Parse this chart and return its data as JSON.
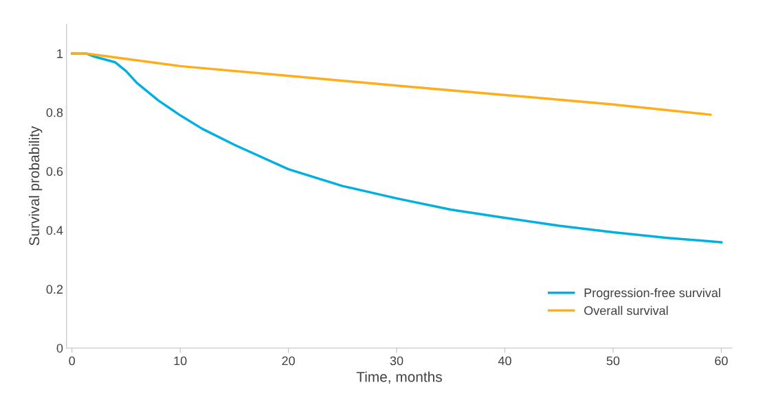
{
  "chart_data": {
    "type": "line",
    "xlabel": "Time, months",
    "ylabel": "Survival probability",
    "xlim": [
      -0.5,
      61
    ],
    "ylim": [
      0,
      1.1
    ],
    "xticks": [
      0,
      10,
      20,
      30,
      40,
      50,
      60
    ],
    "yticks": [
      0,
      0.2,
      0.4,
      0.6,
      0.8,
      1
    ],
    "grid": false,
    "legend": "bottom right",
    "marker": "none",
    "line_style": "solid",
    "series": [
      {
        "name": "Progression-free survival",
        "color": "#00b0e0",
        "x": [
          0,
          1.3,
          2,
          4,
          5,
          6,
          8,
          10,
          12,
          15,
          20,
          25,
          30,
          35,
          40,
          45,
          50,
          55,
          60
        ],
        "values": [
          1,
          1,
          0.99,
          0.97,
          0.94,
          0.9,
          0.84,
          0.79,
          0.745,
          0.69,
          0.607,
          0.55,
          0.508,
          0.47,
          0.442,
          0.415,
          0.393,
          0.374,
          0.359
        ]
      },
      {
        "name": "Overall survival",
        "color": "#ffae1a",
        "x": [
          0,
          1.3,
          10,
          20,
          30,
          40,
          50,
          59
        ],
        "values": [
          1,
          1,
          0.957,
          0.924,
          0.891,
          0.859,
          0.827,
          0.792
        ]
      }
    ]
  }
}
